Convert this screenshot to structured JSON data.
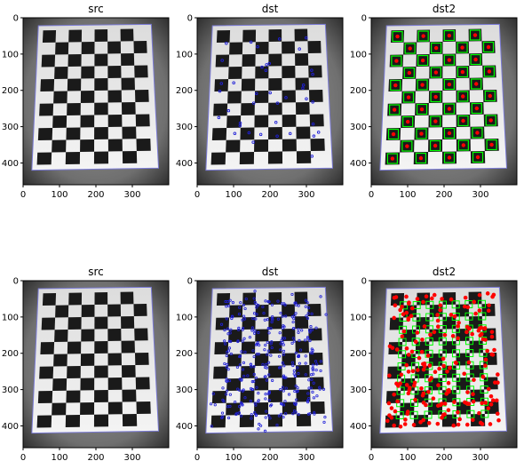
{
  "figure": {
    "panels": [
      {
        "title": "src",
        "image": "src-board-photo",
        "overlay": "none"
      },
      {
        "title": "dst",
        "image": "dst-board-photo",
        "overlay": "blue-corner-markers-sparse"
      },
      {
        "title": "dst2",
        "image": "dst2-board-photo",
        "overlay": "red-dots-green-squares-sparse"
      },
      {
        "title": "src",
        "image": "src-board-photo",
        "overlay": "none"
      },
      {
        "title": "dst",
        "image": "dst-board-photo",
        "overlay": "blue-corner-markers-dense"
      },
      {
        "title": "dst2",
        "image": "dst2-board-photo",
        "overlay": "red-dots-green-squares-dense"
      }
    ]
  },
  "chart_data": {
    "type": "image-grid",
    "rows": 2,
    "cols": 3,
    "titles": [
      "src",
      "dst",
      "dst2",
      "src",
      "dst",
      "dst2"
    ],
    "xlim": [
      0,
      400
    ],
    "ylim": [
      460,
      0
    ],
    "xticks": [
      0,
      100,
      200,
      300
    ],
    "yticks": [
      0,
      100,
      200,
      300,
      400
    ],
    "colors": {
      "marker_blue": "#1f1fd8",
      "marker_red": "#ff0000",
      "box_green": "#00ff00",
      "board_dark": "#1a1a1a",
      "board_light": "#f2f2f2"
    }
  }
}
